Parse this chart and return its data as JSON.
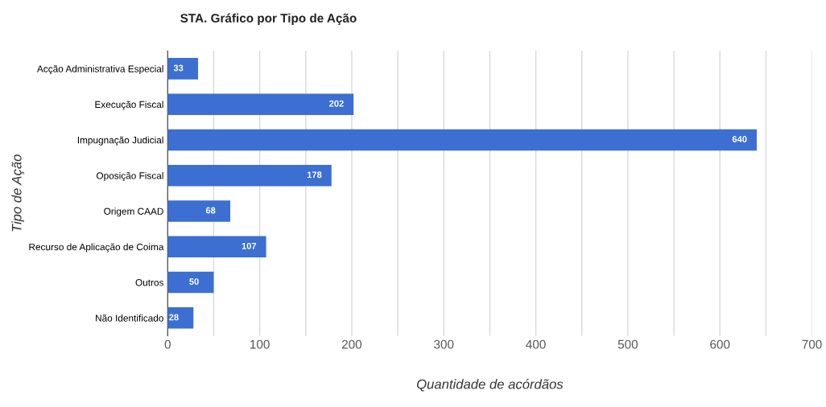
{
  "chart_data": {
    "type": "bar",
    "orientation": "horizontal",
    "title": "STA. Gráfico por Tipo de Ação",
    "xlabel": "Quantidade de acórdãos",
    "ylabel": "Tipo de Ação",
    "categories": [
      "Acção Administrativa Especial",
      "Execução Fiscal",
      "Impugnação Judicial",
      "Oposição Fiscal",
      "Origem CAAD",
      "Recurso de Aplicação de Coima",
      "Outros",
      "Não Identificado"
    ],
    "values": [
      33,
      202,
      640,
      178,
      68,
      107,
      50,
      28
    ],
    "color": "#3c6fd1",
    "data_labels": true,
    "grid": "x",
    "legend": false,
    "xlim": [
      0,
      700
    ],
    "xticks": [
      0,
      {
        "value": 50,
        "label": null
      },
      100,
      {
        "value": 150,
        "label": null
      },
      200,
      {
        "value": 250,
        "label": null
      },
      300,
      {
        "value": 350,
        "label": null
      },
      400,
      {
        "value": 450,
        "label": null
      },
      500,
      {
        "value": 550,
        "label": null
      },
      600,
      {
        "value": 650,
        "label": null
      },
      700
    ]
  }
}
